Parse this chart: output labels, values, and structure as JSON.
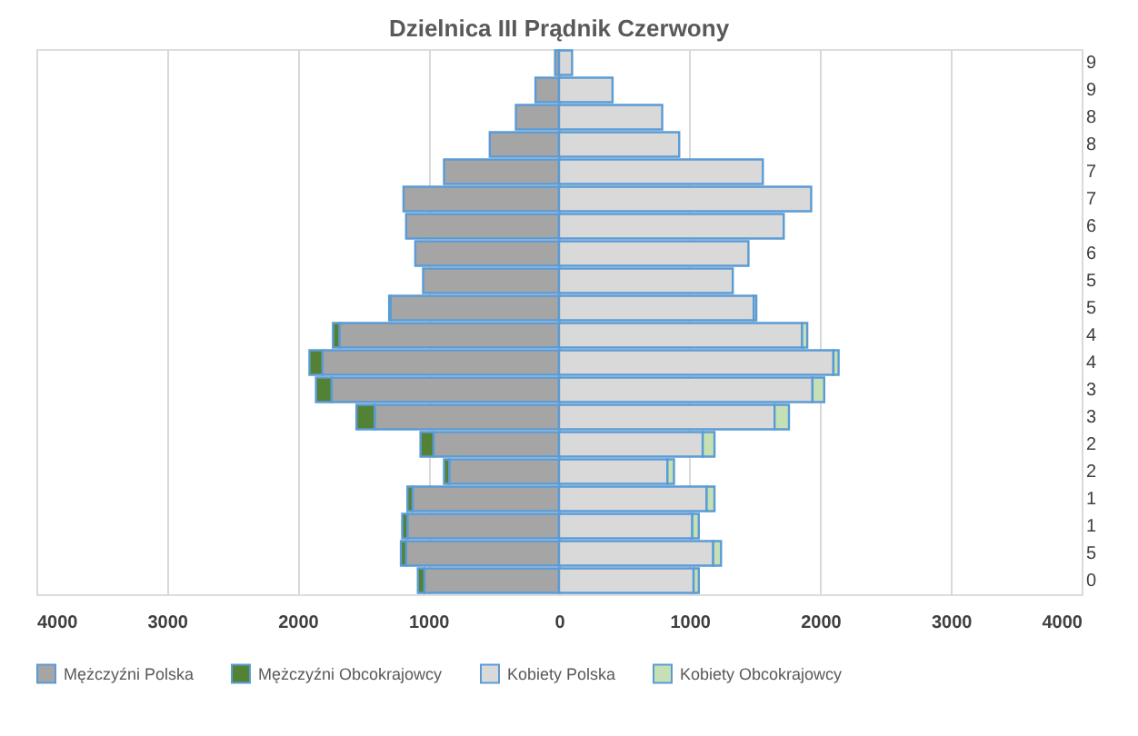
{
  "chart_data": {
    "type": "bar",
    "orientation": "horizontal",
    "stacked": true,
    "title": "Dzielnica III Prądnik Czerwony",
    "categories": [
      "9",
      "9",
      "8",
      "8",
      "7",
      "7",
      "6",
      "6",
      "5",
      "5",
      "4",
      "4",
      "3",
      "3",
      "2",
      "2",
      "1",
      "1",
      "5",
      "0"
    ],
    "series": [
      {
        "name": "Mężczyźni Polska",
        "color": "#a5a5a5",
        "values": [
          -30,
          -180,
          -330,
          -530,
          -880,
          -1190,
          -1170,
          -1100,
          -1040,
          -1290,
          -1680,
          -1810,
          -1740,
          -1410,
          -960,
          -840,
          -1120,
          -1160,
          -1170,
          -1030
        ]
      },
      {
        "name": "Mężczyźni Obcokrajowcy",
        "color": "#548235",
        "values": [
          null,
          null,
          null,
          null,
          null,
          null,
          null,
          null,
          null,
          -10,
          -50,
          -100,
          -120,
          -140,
          -100,
          -40,
          -40,
          -40,
          -40,
          -50
        ]
      },
      {
        "name": "Kobiety Polska",
        "color": "#d9d9d9",
        "values": [
          100,
          410,
          790,
          920,
          1560,
          1930,
          1720,
          1450,
          1330,
          1490,
          1860,
          2100,
          1940,
          1650,
          1100,
          830,
          1130,
          1020,
          1180,
          1030
        ]
      },
      {
        "name": "Kobiety Obcokrajowcy",
        "color": "#c5e0b4",
        "values": [
          null,
          null,
          null,
          null,
          null,
          null,
          null,
          null,
          null,
          20,
          40,
          40,
          90,
          110,
          90,
          50,
          60,
          50,
          60,
          40
        ]
      }
    ],
    "xlim": [
      -4000,
      4000
    ],
    "xticks": [
      {
        "value": -4000,
        "label": "4000"
      },
      {
        "value": -3000,
        "label": "3000"
      },
      {
        "value": -2000,
        "label": "2000"
      },
      {
        "value": -1000,
        "label": "1000"
      },
      0,
      1000,
      2000,
      3000,
      4000
    ],
    "grid": "x",
    "legend": "bottom"
  }
}
